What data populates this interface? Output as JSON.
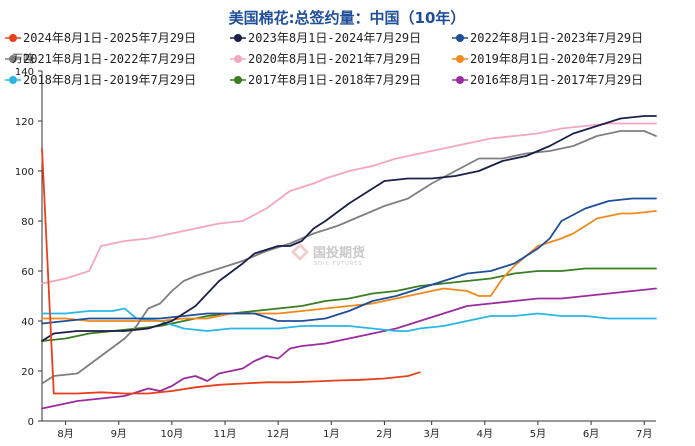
{
  "watermark": {
    "text": "国投期货",
    "subtext": "SDIC FUTURES"
  },
  "chart_data": {
    "type": "line",
    "title": "美国棉花:总签约量：中国（10年）",
    "unit": "万吨",
    "ylim": [
      0,
      140
    ],
    "yticks": [
      0,
      20,
      40,
      60,
      80,
      100,
      120,
      140
    ],
    "xlim": [
      0,
      52
    ],
    "xticks": [
      {
        "label": "8月",
        "x": 2
      },
      {
        "label": "9月",
        "x": 6.5
      },
      {
        "label": "10月",
        "x": 11
      },
      {
        "label": "11月",
        "x": 15.5
      },
      {
        "label": "12月",
        "x": 20
      },
      {
        "label": "1月",
        "x": 24.5
      },
      {
        "label": "2月",
        "x": 29
      },
      {
        "label": "3月",
        "x": 33
      },
      {
        "label": "4月",
        "x": 37.5
      },
      {
        "label": "5月",
        "x": 42
      },
      {
        "label": "6月",
        "x": 46.5
      },
      {
        "label": "7月",
        "x": 51
      }
    ],
    "legend_position": "top",
    "series": [
      {
        "name": "2024年8月1日-2025年7月29日",
        "color": "#e8401c",
        "points": [
          [
            0,
            109
          ],
          [
            1,
            11
          ],
          [
            3,
            11
          ],
          [
            5,
            11.5
          ],
          [
            7,
            11
          ],
          [
            9,
            11
          ],
          [
            11,
            12
          ],
          [
            13,
            13.5
          ],
          [
            15,
            14.5
          ],
          [
            17,
            15
          ],
          [
            19,
            15.5
          ],
          [
            21,
            15.5
          ],
          [
            23,
            15.8
          ],
          [
            25,
            16.2
          ],
          [
            27,
            16.5
          ],
          [
            29,
            17
          ],
          [
            31,
            18
          ],
          [
            32,
            19.5
          ]
        ]
      },
      {
        "name": "2023年8月1日-2024年7月29日",
        "color": "#1b1f4a",
        "points": [
          [
            0,
            32
          ],
          [
            1,
            35
          ],
          [
            3,
            36
          ],
          [
            5,
            36
          ],
          [
            7,
            36
          ],
          [
            9,
            37
          ],
          [
            11,
            40
          ],
          [
            13,
            46
          ],
          [
            15,
            56
          ],
          [
            17,
            63
          ],
          [
            18,
            67
          ],
          [
            20,
            70
          ],
          [
            21,
            70
          ],
          [
            22,
            72
          ],
          [
            23,
            77
          ],
          [
            24,
            80
          ],
          [
            26,
            87
          ],
          [
            28,
            93
          ],
          [
            29,
            96
          ],
          [
            31,
            97
          ],
          [
            33,
            97
          ],
          [
            35,
            98
          ],
          [
            37,
            100
          ],
          [
            39,
            104
          ],
          [
            41,
            106
          ],
          [
            43,
            110
          ],
          [
            45,
            115
          ],
          [
            47,
            118
          ],
          [
            49,
            121
          ],
          [
            51,
            122
          ],
          [
            52,
            122
          ]
        ]
      },
      {
        "name": "2022年8月1日-2023年7月29日",
        "color": "#1f4e99",
        "points": [
          [
            0,
            39
          ],
          [
            2,
            40
          ],
          [
            4,
            41
          ],
          [
            6,
            41
          ],
          [
            8,
            41
          ],
          [
            10,
            41
          ],
          [
            12,
            42
          ],
          [
            14,
            43
          ],
          [
            16,
            43
          ],
          [
            18,
            43
          ],
          [
            20,
            40
          ],
          [
            22,
            40
          ],
          [
            24,
            41
          ],
          [
            26,
            44
          ],
          [
            28,
            48
          ],
          [
            30,
            50
          ],
          [
            32,
            53
          ],
          [
            34,
            56
          ],
          [
            36,
            59
          ],
          [
            38,
            60
          ],
          [
            40,
            63
          ],
          [
            42,
            69
          ],
          [
            43,
            73
          ],
          [
            44,
            80
          ],
          [
            46,
            85
          ],
          [
            48,
            88
          ],
          [
            50,
            89
          ],
          [
            51,
            89
          ],
          [
            52,
            89
          ]
        ]
      },
      {
        "name": "2021年8月1日-2022年7月29日",
        "color": "#7f7f7f",
        "points": [
          [
            0,
            15
          ],
          [
            1,
            18
          ],
          [
            3,
            19
          ],
          [
            5,
            26
          ],
          [
            7,
            33
          ],
          [
            8,
            38
          ],
          [
            9,
            45
          ],
          [
            10,
            47
          ],
          [
            11,
            52
          ],
          [
            12,
            56
          ],
          [
            13,
            58
          ],
          [
            15,
            61
          ],
          [
            17,
            64
          ],
          [
            19,
            68
          ],
          [
            21,
            71
          ],
          [
            23,
            75
          ],
          [
            25,
            78
          ],
          [
            27,
            82
          ],
          [
            29,
            86
          ],
          [
            31,
            89
          ],
          [
            33,
            95
          ],
          [
            35,
            100
          ],
          [
            37,
            105
          ],
          [
            39,
            105
          ],
          [
            41,
            107
          ],
          [
            43,
            108
          ],
          [
            45,
            110
          ],
          [
            47,
            114
          ],
          [
            49,
            116
          ],
          [
            51,
            116
          ],
          [
            52,
            114
          ]
        ]
      },
      {
        "name": "2020年8月1日-2021年7月29日",
        "color": "#f4a6c0",
        "points": [
          [
            0,
            55
          ],
          [
            2,
            57
          ],
          [
            4,
            60
          ],
          [
            5,
            70
          ],
          [
            7,
            72
          ],
          [
            9,
            73
          ],
          [
            11,
            75
          ],
          [
            13,
            77
          ],
          [
            15,
            79
          ],
          [
            17,
            80
          ],
          [
            19,
            85
          ],
          [
            21,
            92
          ],
          [
            23,
            95
          ],
          [
            24,
            97
          ],
          [
            26,
            100
          ],
          [
            28,
            102
          ],
          [
            30,
            105
          ],
          [
            32,
            107
          ],
          [
            34,
            109
          ],
          [
            36,
            111
          ],
          [
            38,
            113
          ],
          [
            40,
            114
          ],
          [
            42,
            115
          ],
          [
            44,
            117
          ],
          [
            46,
            118
          ],
          [
            48,
            119
          ],
          [
            50,
            119
          ],
          [
            52,
            119
          ]
        ]
      },
      {
        "name": "2019年8月1日-2020年7月29日",
        "color": "#f0891e",
        "points": [
          [
            0,
            41
          ],
          [
            2,
            41
          ],
          [
            4,
            40
          ],
          [
            6,
            40
          ],
          [
            8,
            40
          ],
          [
            10,
            40
          ],
          [
            12,
            41
          ],
          [
            14,
            41
          ],
          [
            16,
            43
          ],
          [
            18,
            43
          ],
          [
            20,
            43
          ],
          [
            22,
            44
          ],
          [
            24,
            45
          ],
          [
            26,
            46
          ],
          [
            28,
            47
          ],
          [
            30,
            49
          ],
          [
            32,
            51
          ],
          [
            34,
            53
          ],
          [
            36,
            52
          ],
          [
            37,
            50
          ],
          [
            38,
            50
          ],
          [
            39,
            57
          ],
          [
            40,
            62
          ],
          [
            42,
            70
          ],
          [
            44,
            73
          ],
          [
            45,
            75
          ],
          [
            46,
            78
          ],
          [
            47,
            81
          ],
          [
            49,
            83
          ],
          [
            50,
            83
          ],
          [
            52,
            84
          ]
        ]
      },
      {
        "name": "2018年8月1日-2019年7月29日",
        "color": "#29b6e8",
        "points": [
          [
            0,
            43
          ],
          [
            2,
            43
          ],
          [
            4,
            44
          ],
          [
            6,
            44
          ],
          [
            7,
            45
          ],
          [
            8,
            41
          ],
          [
            10,
            40
          ],
          [
            12,
            37
          ],
          [
            14,
            36
          ],
          [
            16,
            37
          ],
          [
            18,
            37
          ],
          [
            20,
            37
          ],
          [
            22,
            38
          ],
          [
            24,
            38
          ],
          [
            26,
            38
          ],
          [
            28,
            37
          ],
          [
            30,
            36
          ],
          [
            31,
            36
          ],
          [
            32,
            37
          ],
          [
            34,
            38
          ],
          [
            36,
            40
          ],
          [
            38,
            42
          ],
          [
            40,
            42
          ],
          [
            42,
            43
          ],
          [
            44,
            42
          ],
          [
            46,
            42
          ],
          [
            48,
            41
          ],
          [
            50,
            41
          ],
          [
            52,
            41
          ]
        ]
      },
      {
        "name": "2017年8月1日-2018年7月29日",
        "color": "#3a7d22",
        "points": [
          [
            0,
            32
          ],
          [
            2,
            33
          ],
          [
            4,
            35
          ],
          [
            6,
            36
          ],
          [
            8,
            37
          ],
          [
            10,
            38
          ],
          [
            12,
            40
          ],
          [
            14,
            42
          ],
          [
            16,
            43
          ],
          [
            18,
            44
          ],
          [
            20,
            45
          ],
          [
            22,
            46
          ],
          [
            24,
            48
          ],
          [
            26,
            49
          ],
          [
            28,
            51
          ],
          [
            30,
            52
          ],
          [
            32,
            54
          ],
          [
            34,
            55
          ],
          [
            36,
            56
          ],
          [
            38,
            57
          ],
          [
            40,
            59
          ],
          [
            42,
            60
          ],
          [
            44,
            60
          ],
          [
            46,
            61
          ],
          [
            48,
            61
          ],
          [
            50,
            61
          ],
          [
            52,
            61
          ]
        ]
      },
      {
        "name": "2016年8月1日-2017年7月29日",
        "color": "#9b2c9f",
        "points": [
          [
            0,
            5
          ],
          [
            2,
            7
          ],
          [
            3,
            8
          ],
          [
            5,
            9
          ],
          [
            7,
            10
          ],
          [
            9,
            13
          ],
          [
            10,
            12
          ],
          [
            11,
            14
          ],
          [
            12,
            17
          ],
          [
            13,
            18
          ],
          [
            14,
            16
          ],
          [
            15,
            19
          ],
          [
            17,
            21
          ],
          [
            18,
            24
          ],
          [
            19,
            26
          ],
          [
            20,
            25
          ],
          [
            21,
            29
          ],
          [
            22,
            30
          ],
          [
            24,
            31
          ],
          [
            26,
            33
          ],
          [
            28,
            35
          ],
          [
            30,
            37
          ],
          [
            32,
            40
          ],
          [
            34,
            43
          ],
          [
            36,
            46
          ],
          [
            38,
            47
          ],
          [
            40,
            48
          ],
          [
            42,
            49
          ],
          [
            44,
            49
          ],
          [
            46,
            50
          ],
          [
            48,
            51
          ],
          [
            50,
            52
          ],
          [
            52,
            53
          ]
        ]
      }
    ]
  }
}
